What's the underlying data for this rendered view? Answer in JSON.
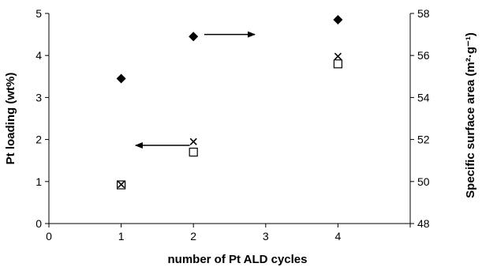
{
  "chart_data": {
    "type": "scatter",
    "title": "",
    "xlabel": "number of Pt ALD cycles",
    "ylabel_left": "Pt loading (wt%)",
    "ylabel_right": "Specific surface area (m²·g⁻¹)",
    "xlim": [
      0,
      5
    ],
    "ylim_left": [
      0,
      5
    ],
    "ylim_right": [
      48,
      58
    ],
    "x_ticks": [
      "0",
      "1",
      "2",
      "3",
      "4"
    ],
    "y_left_ticks": [
      "0",
      "1",
      "2",
      "3",
      "4",
      "5"
    ],
    "y_right_ticks": [
      "48",
      "50",
      "52",
      "54",
      "56",
      "58"
    ],
    "grid": false,
    "legend": "none",
    "series": [
      {
        "marker": "open-square",
        "axis": "left",
        "x": [
          1,
          2,
          4
        ],
        "y": [
          0.92,
          1.7,
          3.8
        ]
      },
      {
        "marker": "cross",
        "axis": "left",
        "x": [
          1,
          2,
          4
        ],
        "y": [
          0.93,
          1.95,
          3.98
        ]
      },
      {
        "marker": "filled-diamond",
        "axis": "right",
        "x": [
          1,
          2,
          4
        ],
        "y": [
          54.9,
          56.9,
          57.7
        ]
      }
    ],
    "annotations": [
      {
        "type": "arrow",
        "direction": "left",
        "axis": "left",
        "x_from": 1.95,
        "x_to": 1.2,
        "y": 1.86
      },
      {
        "type": "arrow",
        "direction": "right",
        "axis": "right",
        "x_from": 2.15,
        "x_to": 2.85,
        "y": 57.0
      }
    ]
  }
}
